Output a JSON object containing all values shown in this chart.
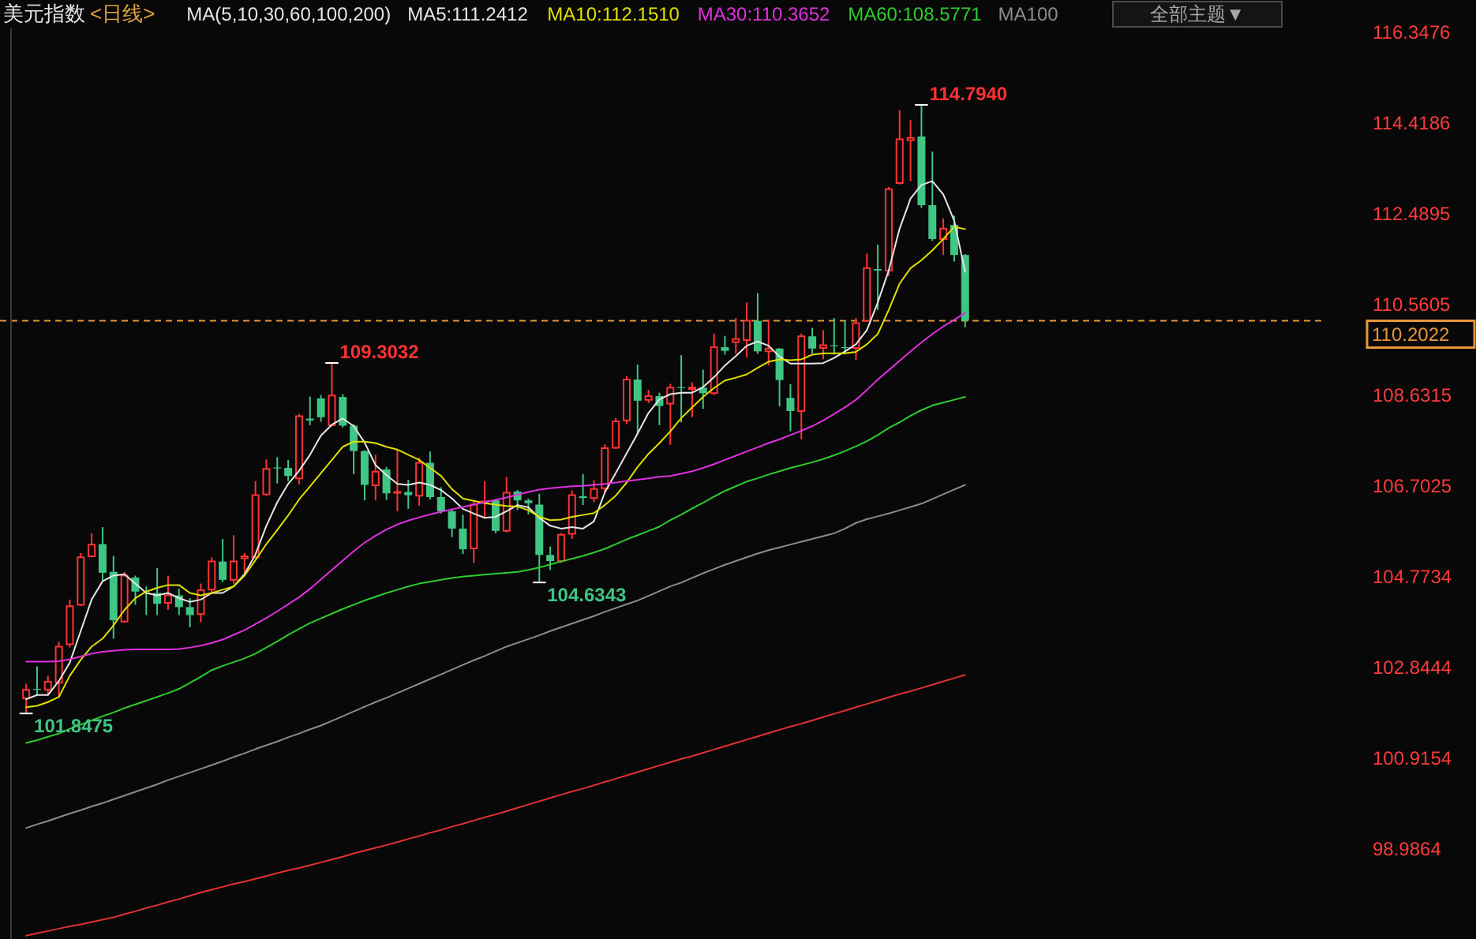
{
  "chart_data": {
    "type": "candlestick",
    "title": "美元指数",
    "subtitle": "<日线>",
    "legend_title": "MA(5,10,30,60,100,200)",
    "categories": [
      null,
      null,
      null,
      null,
      null,
      null,
      null,
      null,
      null,
      null,
      null,
      null,
      null,
      null,
      null,
      null,
      null,
      null,
      null,
      null,
      null,
      null,
      null,
      null,
      null,
      null,
      null,
      null,
      null,
      null,
      null,
      null,
      null,
      null,
      null,
      null,
      null,
      null,
      null,
      null,
      null,
      null,
      null,
      null,
      null,
      null,
      null,
      null,
      null,
      null,
      null,
      null,
      null,
      null,
      null,
      null,
      null,
      null,
      null,
      null,
      null,
      null,
      null,
      null,
      null,
      null,
      null,
      null,
      null,
      null,
      null,
      null,
      null,
      null,
      null,
      null,
      null,
      null,
      null,
      null,
      null,
      null,
      null,
      null,
      null,
      null,
      null
    ],
    "ohlc": [
      [
        102.17,
        102.48,
        101.8475,
        102.35
      ],
      [
        102.37,
        102.85,
        102.24,
        102.35
      ],
      [
        102.35,
        102.65,
        102.24,
        102.52
      ],
      [
        102.5,
        103.37,
        102.18,
        103.27
      ],
      [
        103.32,
        104.27,
        103.25,
        104.13
      ],
      [
        104.16,
        105.26,
        104.13,
        105.17
      ],
      [
        105.19,
        105.68,
        105.17,
        105.44
      ],
      [
        105.45,
        105.81,
        104.67,
        104.84
      ],
      [
        104.86,
        105.2,
        103.44,
        103.83
      ],
      [
        103.8,
        104.86,
        103.78,
        104.78
      ],
      [
        104.74,
        104.78,
        104.16,
        104.44
      ],
      [
        104.42,
        104.55,
        103.94,
        104.4
      ],
      [
        104.41,
        104.94,
        103.94,
        104.18
      ],
      [
        104.2,
        104.78,
        104.05,
        104.36
      ],
      [
        104.36,
        104.5,
        103.94,
        104.11
      ],
      [
        104.11,
        104.3,
        103.68,
        103.94
      ],
      [
        103.96,
        104.61,
        103.79,
        104.47
      ],
      [
        104.48,
        105.17,
        104.39,
        105.08
      ],
      [
        105.08,
        105.56,
        104.64,
        104.69
      ],
      [
        104.69,
        105.64,
        104.61,
        105.08
      ],
      [
        105.15,
        105.26,
        104.83,
        105.19
      ],
      [
        105.17,
        106.79,
        105.15,
        106.49
      ],
      [
        106.51,
        107.25,
        106.48,
        107.05
      ],
      [
        107.08,
        107.3,
        106.74,
        107.06
      ],
      [
        107.07,
        107.24,
        106.79,
        106.9
      ],
      [
        106.85,
        108.22,
        106.72,
        108.17
      ],
      [
        108.12,
        108.59,
        107.98,
        108.08
      ],
      [
        108.55,
        108.62,
        108.05,
        108.15
      ],
      [
        107.98,
        109.3032,
        107.95,
        108.61
      ],
      [
        108.58,
        108.64,
        107.93,
        107.97
      ],
      [
        107.97,
        108.0,
        106.94,
        107.43
      ],
      [
        107.43,
        107.45,
        106.38,
        106.71
      ],
      [
        106.7,
        107.35,
        106.38,
        106.99
      ],
      [
        107.04,
        107.09,
        106.39,
        106.53
      ],
      [
        106.54,
        107.46,
        106.15,
        106.56
      ],
      [
        106.56,
        106.82,
        106.2,
        106.49
      ],
      [
        106.48,
        107.29,
        106.27,
        107.18
      ],
      [
        107.18,
        107.42,
        106.4,
        106.45
      ],
      [
        106.45,
        106.66,
        106.1,
        106.15
      ],
      [
        106.15,
        106.2,
        105.6,
        105.78
      ],
      [
        105.78,
        106.08,
        105.24,
        105.34
      ],
      [
        105.36,
        106.38,
        105.05,
        106.29
      ],
      [
        106.33,
        106.79,
        106.01,
        106.36
      ],
      [
        106.38,
        106.41,
        105.68,
        105.73
      ],
      [
        105.73,
        106.88,
        105.7,
        106.54
      ],
      [
        106.57,
        106.6,
        106.18,
        106.38
      ],
      [
        106.38,
        106.42,
        106.08,
        106.32
      ],
      [
        106.29,
        106.52,
        104.6343,
        105.22
      ],
      [
        105.22,
        105.4,
        104.9,
        105.09
      ],
      [
        105.09,
        105.69,
        105.05,
        105.65
      ],
      [
        105.67,
        106.59,
        105.56,
        106.49
      ],
      [
        106.47,
        106.94,
        106.28,
        106.43
      ],
      [
        106.43,
        106.81,
        106.34,
        106.62
      ],
      [
        106.64,
        107.57,
        106.55,
        107.49
      ],
      [
        107.5,
        108.13,
        107.48,
        108.06
      ],
      [
        108.08,
        109.03,
        108.0,
        108.95
      ],
      [
        108.95,
        109.27,
        107.8,
        108.5
      ],
      [
        108.52,
        108.73,
        108.45,
        108.6
      ],
      [
        108.6,
        108.67,
        107.98,
        108.39
      ],
      [
        108.44,
        108.86,
        107.56,
        108.78
      ],
      [
        108.79,
        109.47,
        108.04,
        108.77
      ],
      [
        108.75,
        108.89,
        108.15,
        108.78
      ],
      [
        108.78,
        109.16,
        108.33,
        108.66
      ],
      [
        108.66,
        109.93,
        108.62,
        109.64
      ],
      [
        109.64,
        109.88,
        109.48,
        109.56
      ],
      [
        109.75,
        110.26,
        109.5,
        109.81
      ],
      [
        109.79,
        110.59,
        109.42,
        110.2
      ],
      [
        110.2,
        110.79,
        109.5,
        109.55
      ],
      [
        109.55,
        110.23,
        109.25,
        109.61
      ],
      [
        109.61,
        109.62,
        108.38,
        108.94
      ],
      [
        108.56,
        108.85,
        107.85,
        108.28
      ],
      [
        108.28,
        109.93,
        107.68,
        109.87
      ],
      [
        109.87,
        110.05,
        109.5,
        109.61
      ],
      [
        109.62,
        110.0,
        109.38,
        109.68
      ],
      [
        109.68,
        110.26,
        109.48,
        109.66
      ],
      [
        109.64,
        110.2,
        109.52,
        109.62
      ],
      [
        109.62,
        110.26,
        109.36,
        110.15
      ],
      [
        110.2,
        111.63,
        110.18,
        111.32
      ],
      [
        111.3,
        111.82,
        110.43,
        111.27
      ],
      [
        111.27,
        113.05,
        111.15,
        113.0
      ],
      [
        113.13,
        114.68,
        113.1,
        114.06
      ],
      [
        114.04,
        114.47,
        113.17,
        114.09
      ],
      [
        114.12,
        114.794,
        112.6,
        112.66
      ],
      [
        112.66,
        113.8,
        111.9,
        111.94
      ],
      [
        111.94,
        112.38,
        111.6,
        112.16
      ],
      [
        112.24,
        112.44,
        111.46,
        111.6
      ],
      [
        111.6,
        111.62,
        110.06,
        110.2022
      ]
    ],
    "colors": [
      "#ff3232",
      "#3fc584",
      "#ff3232",
      "#ff3232",
      "#ff3232",
      "#ff3232",
      "#ff3232",
      "#3fc584",
      "#3fc584",
      "#ff3232",
      "#3fc584",
      "#3fc584",
      "#3fc584",
      "#ff3232",
      "#3fc584",
      "#3fc584",
      "#ff3232",
      "#ff3232",
      "#3fc584",
      "#ff3232",
      "#ff3232",
      "#ff3232",
      "#ff3232",
      "#3fc584",
      "#3fc584",
      "#ff3232",
      "#3fc584",
      "#3fc584",
      "#ff3232",
      "#3fc584",
      "#3fc584",
      "#3fc584",
      "#ff3232",
      "#3fc584",
      "#ff3232",
      "#3fc584",
      "#ff3232",
      "#3fc584",
      "#3fc584",
      "#3fc584",
      "#3fc584",
      "#ff3232",
      "#ff3232",
      "#3fc584",
      "#ff3232",
      "#3fc584",
      "#3fc584",
      "#3fc584",
      "#3fc584",
      "#ff3232",
      "#ff3232",
      "#3fc584",
      "#ff3232",
      "#ff3232",
      "#ff3232",
      "#ff3232",
      "#3fc584",
      "#ff3232",
      "#3fc584",
      "#ff3232",
      "#3fc584",
      "#ff3232",
      "#3fc584",
      "#ff3232",
      "#3fc584",
      "#ff3232",
      "#ff3232",
      "#3fc584",
      "#ff3232",
      "#3fc584",
      "#3fc584",
      "#ff3232",
      "#3fc584",
      "#ff3232",
      "#3fc584",
      "#3fc584",
      "#ff3232",
      "#ff3232",
      "#3fc584",
      "#ff3232",
      "#ff3232",
      "#ff3232",
      "#3fc584",
      "#3fc584",
      "#ff3232",
      "#3fc584",
      "#3fc584"
    ],
    "series": [
      {
        "name": "MA5:111.2412",
        "type": "line",
        "color": "#e6e6e6",
        "values": [
          102.15,
          102.24,
          102.24,
          102.54,
          102.93,
          103.6,
          104.27,
          104.66,
          104.78,
          104.81,
          104.61,
          104.41,
          104.36,
          104.41,
          104.3,
          104.22,
          104.27,
          104.41,
          104.41,
          104.55,
          104.81,
          105.23,
          105.84,
          106.34,
          106.73,
          107.01,
          107.35,
          107.76,
          107.99,
          108.12,
          107.96,
          107.61,
          107.13,
          106.92,
          106.73,
          106.71,
          106.76,
          106.71,
          106.6,
          106.42,
          106.2,
          106.1,
          106.01,
          106.03,
          106.15,
          106.28,
          106.23,
          106.01,
          105.84,
          105.78,
          105.81,
          105.78,
          105.93,
          106.55,
          106.96,
          107.38,
          107.8,
          108.24,
          108.53,
          108.64,
          108.67,
          108.67,
          108.79,
          109.0,
          109.25,
          109.45,
          109.67,
          109.76,
          109.67,
          109.44,
          109.29,
          109.29,
          109.29,
          109.3,
          109.41,
          109.55,
          109.7,
          110.0,
          110.59,
          111.27,
          112.16,
          112.8,
          113.09,
          113.17,
          112.89,
          112.33,
          111.24
        ]
      },
      {
        "name": "MA10:112.1510",
        "type": "line",
        "color": "#e0e000",
        "values": [
          101.98,
          102.01,
          102.09,
          102.2,
          102.65,
          102.99,
          103.27,
          103.44,
          103.72,
          104.05,
          104.3,
          104.44,
          104.52,
          104.58,
          104.58,
          104.41,
          104.36,
          104.41,
          104.48,
          104.55,
          104.78,
          105.11,
          105.45,
          105.75,
          106.06,
          106.4,
          106.68,
          106.96,
          107.24,
          107.52,
          107.63,
          107.63,
          107.6,
          107.52,
          107.46,
          107.35,
          107.24,
          107.07,
          106.9,
          106.62,
          106.42,
          106.37,
          106.32,
          106.29,
          106.26,
          106.25,
          106.17,
          106.03,
          105.96,
          105.97,
          106.03,
          106.07,
          106.11,
          106.28,
          106.48,
          106.76,
          107.09,
          107.37,
          107.6,
          107.85,
          108.13,
          108.36,
          108.58,
          108.77,
          108.93,
          108.99,
          109.06,
          109.2,
          109.33,
          109.38,
          109.36,
          109.38,
          109.48,
          109.51,
          109.51,
          109.51,
          109.54,
          109.7,
          109.92,
          110.43,
          110.99,
          111.32,
          111.49,
          111.7,
          111.94,
          112.2,
          112.15
        ]
      },
      {
        "name": "MA30:110.3652",
        "type": "line",
        "color": "#e030e0",
        "values": [
          102.95,
          102.95,
          102.95,
          102.96,
          103.0,
          103.06,
          103.12,
          103.16,
          103.18,
          103.2,
          103.21,
          103.21,
          103.21,
          103.21,
          103.22,
          103.25,
          103.29,
          103.35,
          103.42,
          103.52,
          103.62,
          103.75,
          103.88,
          104.02,
          104.17,
          104.32,
          104.5,
          104.7,
          104.9,
          105.1,
          105.3,
          105.48,
          105.63,
          105.76,
          105.87,
          105.95,
          106.02,
          106.08,
          106.14,
          106.19,
          106.24,
          106.29,
          106.34,
          106.39,
          106.44,
          106.5,
          106.56,
          106.61,
          106.64,
          106.66,
          106.68,
          106.69,
          106.71,
          106.73,
          106.76,
          106.79,
          106.82,
          106.85,
          106.88,
          106.9,
          106.95,
          107.0,
          107.07,
          107.15,
          107.24,
          107.33,
          107.42,
          107.51,
          107.6,
          107.68,
          107.77,
          107.86,
          107.96,
          108.08,
          108.22,
          108.36,
          108.52,
          108.73,
          108.95,
          109.15,
          109.35,
          109.55,
          109.74,
          109.92,
          110.08,
          110.22,
          110.37
        ]
      },
      {
        "name": "MA60:108.5771",
        "type": "line",
        "color": "#2ecc2e",
        "values": [
          101.22,
          101.28,
          101.35,
          101.42,
          101.52,
          101.61,
          101.7,
          101.79,
          101.87,
          101.96,
          102.04,
          102.12,
          102.2,
          102.28,
          102.37,
          102.5,
          102.63,
          102.77,
          102.86,
          102.94,
          103.02,
          103.12,
          103.25,
          103.38,
          103.52,
          103.65,
          103.77,
          103.87,
          103.97,
          104.07,
          104.16,
          104.25,
          104.33,
          104.41,
          104.48,
          104.55,
          104.61,
          104.65,
          104.69,
          104.73,
          104.76,
          104.78,
          104.8,
          104.82,
          104.84,
          104.86,
          104.9,
          104.95,
          105.02,
          105.08,
          105.14,
          105.2,
          105.27,
          105.35,
          105.45,
          105.55,
          105.64,
          105.73,
          105.82,
          105.96,
          106.08,
          106.21,
          106.33,
          106.46,
          106.58,
          106.68,
          106.78,
          106.85,
          106.93,
          107.0,
          107.07,
          107.13,
          107.19,
          107.26,
          107.34,
          107.43,
          107.53,
          107.64,
          107.77,
          107.92,
          108.04,
          108.18,
          108.3,
          108.4,
          108.46,
          108.52,
          108.58
        ]
      },
      {
        "name": "MA100",
        "type": "line",
        "color": "#8c8c8c",
        "values": [
          99.41,
          99.49,
          99.56,
          99.64,
          99.72,
          99.79,
          99.87,
          99.94,
          100.02,
          100.1,
          100.18,
          100.26,
          100.34,
          100.43,
          100.51,
          100.59,
          100.67,
          100.75,
          100.83,
          100.92,
          101.0,
          101.09,
          101.17,
          101.25,
          101.34,
          101.42,
          101.51,
          101.59,
          101.69,
          101.79,
          101.89,
          101.99,
          102.09,
          102.18,
          102.28,
          102.38,
          102.48,
          102.58,
          102.68,
          102.78,
          102.88,
          102.98,
          103.07,
          103.17,
          103.27,
          103.35,
          103.43,
          103.51,
          103.6,
          103.68,
          103.76,
          103.84,
          103.92,
          104.01,
          104.09,
          104.17,
          104.25,
          104.35,
          104.45,
          104.55,
          104.63,
          104.73,
          104.83,
          104.92,
          105.01,
          105.09,
          105.17,
          105.25,
          105.32,
          105.38,
          105.44,
          105.5,
          105.56,
          105.62,
          105.68,
          105.78,
          105.9,
          105.98,
          106.04,
          106.1,
          106.17,
          106.24,
          106.31,
          106.41,
          106.51,
          106.61,
          106.71
        ]
      },
      {
        "type": "line",
        "color": "#e03232",
        "values": [
          97.12,
          97.17,
          97.22,
          97.27,
          97.32,
          97.36,
          97.41,
          97.46,
          97.51,
          97.58,
          97.64,
          97.71,
          97.77,
          97.84,
          97.9,
          97.97,
          98.04,
          98.1,
          98.16,
          98.22,
          98.27,
          98.33,
          98.39,
          98.45,
          98.51,
          98.56,
          98.62,
          98.68,
          98.74,
          98.8,
          98.87,
          98.93,
          98.99,
          99.05,
          99.11,
          99.18,
          99.24,
          99.31,
          99.37,
          99.44,
          99.5,
          99.57,
          99.64,
          99.7,
          99.77,
          99.84,
          99.91,
          99.98,
          100.05,
          100.12,
          100.19,
          100.25,
          100.32,
          100.39,
          100.46,
          100.53,
          100.6,
          100.67,
          100.74,
          100.81,
          100.88,
          100.94,
          101.01,
          101.08,
          101.15,
          101.22,
          101.29,
          101.36,
          101.43,
          101.5,
          101.57,
          101.63,
          101.7,
          101.77,
          101.84,
          101.91,
          101.98,
          102.05,
          102.12,
          102.19,
          102.26,
          102.32,
          102.39,
          102.46,
          102.53,
          102.6,
          102.67
        ]
      }
    ],
    "ylim": [
      97.05,
      116.42
    ],
    "yticks": [
      116.3476,
      114.4186,
      112.4895,
      110.5605,
      108.6315,
      106.7025,
      104.7734,
      102.8444,
      100.9154,
      98.9864
    ],
    "tick_labels": "y",
    "legend": "top",
    "ref_lines": [
      {
        "axis": "y",
        "value": 110.2022,
        "label": "110.2022",
        "color": "#e8963c",
        "line_style": "dashed"
      }
    ],
    "annotations": [
      "114.7940",
      "109.3032",
      "104.6343",
      "101.8475",
      "全部主题▼"
    ]
  }
}
